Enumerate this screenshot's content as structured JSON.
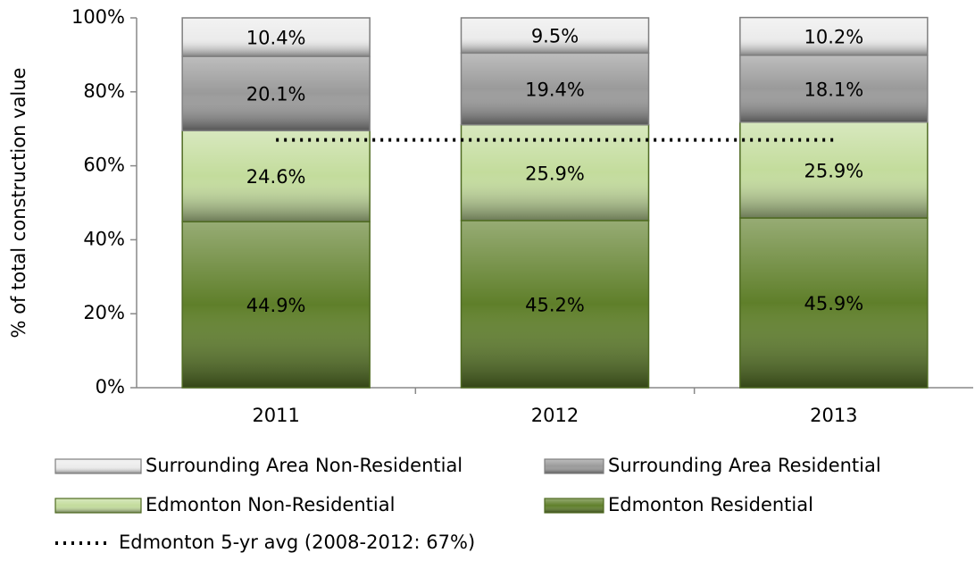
{
  "chart_data": {
    "type": "stacked_bar",
    "y_label": "% of total construction value",
    "categories": [
      "2011",
      "2012",
      "2013"
    ],
    "series": [
      {
        "name": "Edmonton Residential",
        "color": "#5f7f2a",
        "values": [
          44.9,
          45.2,
          45.9
        ],
        "value_labels": [
          "44.9%",
          "45.2%",
          "45.9%"
        ]
      },
      {
        "name": "Edmonton Non-Residential",
        "color": "#c3dc9c",
        "values": [
          24.6,
          25.9,
          25.9
        ],
        "value_labels": [
          "24.6%",
          "25.9%",
          "25.9%"
        ]
      },
      {
        "name": "Surrounding Area Residential",
        "color": "#9a9a9a",
        "values": [
          20.1,
          19.4,
          18.1
        ],
        "value_labels": [
          "20.1%",
          "19.4%",
          "18.1%"
        ]
      },
      {
        "name": "Surrounding Area Non-Residential",
        "color": "#ececec",
        "values": [
          10.4,
          9.5,
          10.2
        ],
        "value_labels": [
          "10.4%",
          "9.5%",
          "10.2%"
        ]
      }
    ],
    "reference_lines": [
      {
        "name": "Edmonton 5-yr avg (2008-2012: 67%)",
        "value": 67,
        "color": "#000000",
        "style": "dotted"
      }
    ],
    "ylim": [
      0,
      100
    ],
    "yticks": [
      {
        "value": 0,
        "label": "0%"
      },
      {
        "value": 20,
        "label": "20%"
      },
      {
        "value": 40,
        "label": "40%"
      },
      {
        "value": 60,
        "label": "60%"
      },
      {
        "value": 80,
        "label": "80%"
      },
      {
        "value": 100,
        "label": "100%"
      }
    ],
    "legend": "bottom"
  }
}
